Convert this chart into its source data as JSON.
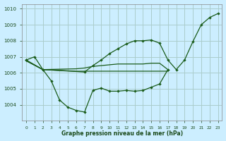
{
  "title": "Graphe pression niveau de la mer (hPa)",
  "background_color": "#cceeff",
  "grid_color": "#aacccc",
  "line_color": "#1a5c1a",
  "text_color": "#1a4a1a",
  "xlim": [
    -0.5,
    23.5
  ],
  "ylim": [
    1003.0,
    1010.3
  ],
  "yticks": [
    1004,
    1005,
    1006,
    1007,
    1008,
    1009,
    1010
  ],
  "xtick_labels": [
    "0",
    "1",
    "2",
    "3",
    "4",
    "5",
    "6",
    "7",
    "8",
    "9",
    "10",
    "11",
    "12",
    "13",
    "14",
    "15",
    "16",
    "17",
    "18",
    "19",
    "20",
    "21",
    "22",
    "23"
  ],
  "series1_x": [
    0,
    1,
    2,
    3,
    4,
    5,
    6,
    7,
    8,
    9,
    10,
    11,
    12,
    13,
    14,
    15,
    16,
    17
  ],
  "series1_y": [
    1006.8,
    1007.0,
    1006.2,
    1005.5,
    1004.3,
    1003.85,
    1003.65,
    1003.55,
    1004.9,
    1005.05,
    1004.85,
    1004.85,
    1004.9,
    1004.85,
    1004.9,
    1005.1,
    1005.3,
    1006.2
  ],
  "series2_x": [
    0,
    2,
    6,
    7,
    8,
    9,
    10,
    11,
    12,
    13,
    14,
    15,
    16,
    17
  ],
  "series2_y": [
    1006.75,
    1006.2,
    1006.25,
    1006.3,
    1006.4,
    1006.45,
    1006.5,
    1006.55,
    1006.55,
    1006.55,
    1006.55,
    1006.6,
    1006.6,
    1006.2
  ],
  "series3_x": [
    0,
    2,
    6,
    7,
    8,
    9,
    10,
    11,
    12,
    13,
    14,
    15,
    16,
    17
  ],
  "series3_y": [
    1006.75,
    1006.2,
    1006.1,
    1006.1,
    1006.1,
    1006.1,
    1006.1,
    1006.1,
    1006.1,
    1006.1,
    1006.1,
    1006.1,
    1006.1,
    1006.1
  ],
  "series4_x": [
    0,
    2,
    7,
    8,
    9,
    10,
    11,
    12,
    13,
    14,
    15,
    16,
    17,
    18,
    19,
    20,
    21,
    22,
    23
  ],
  "series4_y": [
    1006.8,
    1006.2,
    1006.05,
    1006.45,
    1006.8,
    1007.2,
    1007.5,
    1007.8,
    1008.0,
    1008.0,
    1008.05,
    1007.85,
    1006.8,
    1006.2,
    1006.8,
    1007.95,
    1009.0,
    1009.45,
    1009.7
  ]
}
